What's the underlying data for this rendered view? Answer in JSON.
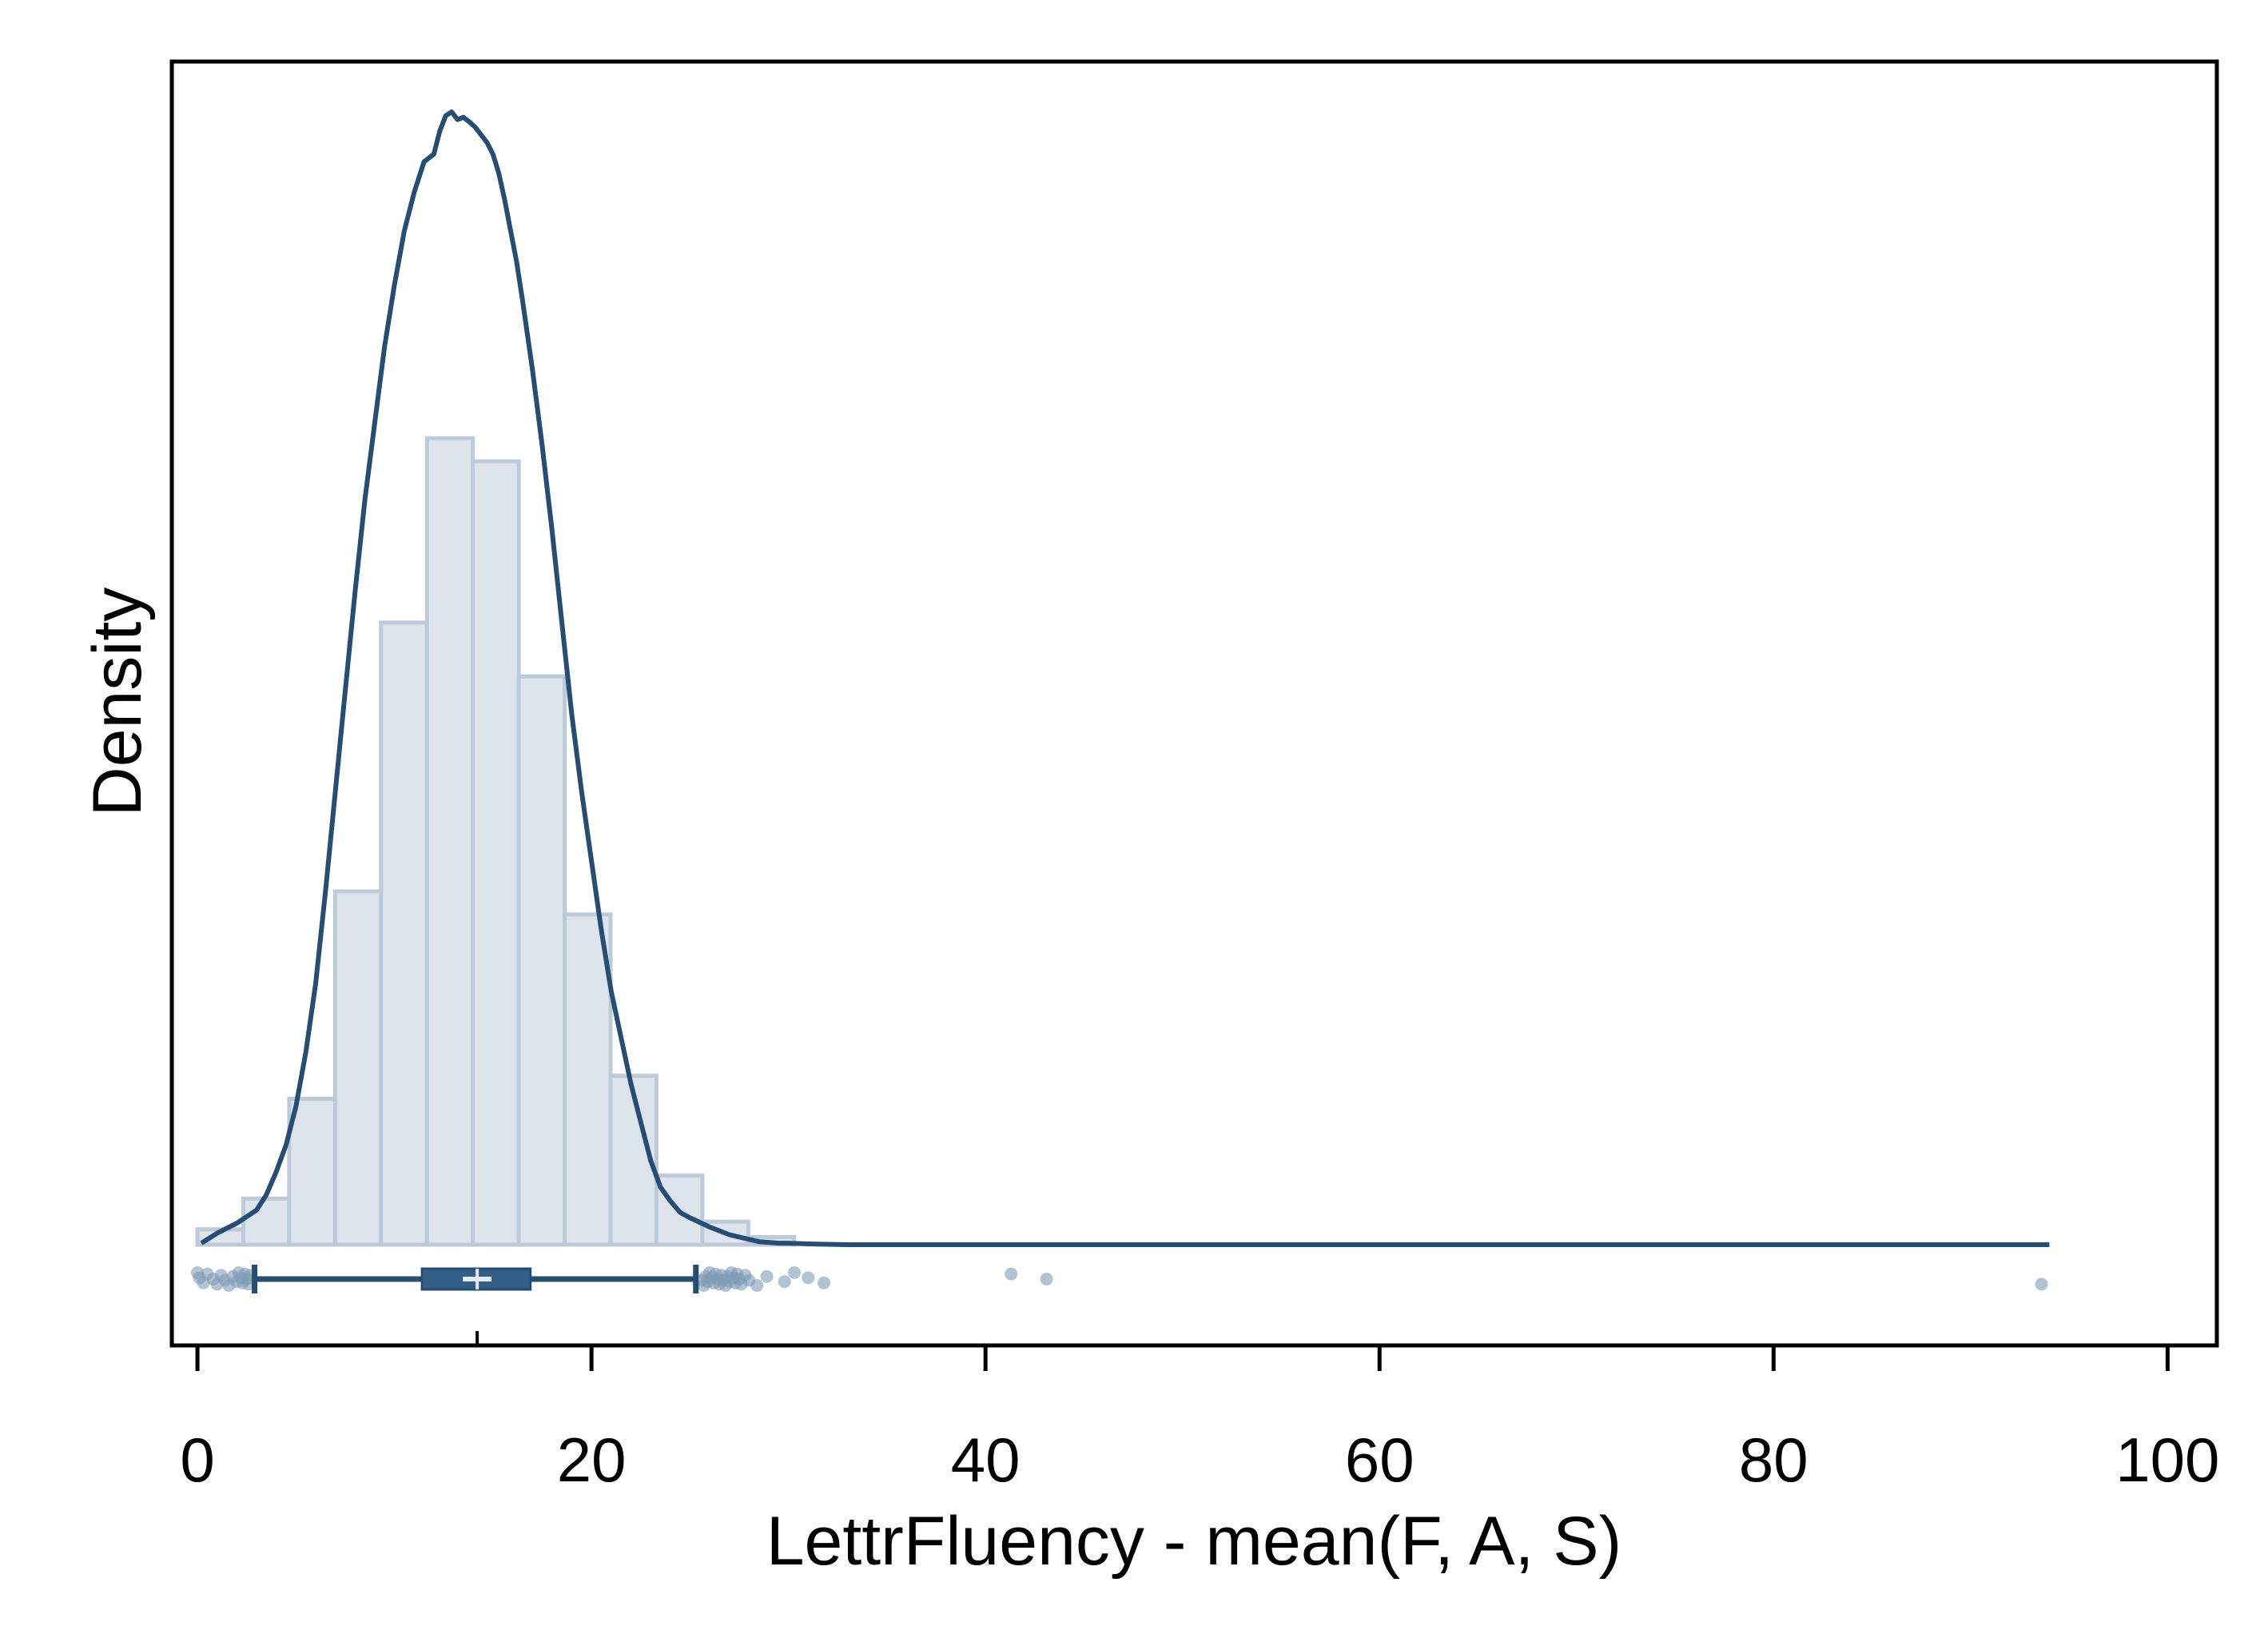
{
  "chart_data": {
    "type": "histogram",
    "xlabel": "LettrFluency - mean(F, A, S)",
    "ylabel": "Density",
    "xlim": [
      -1.3,
      102.5
    ],
    "x_ticks": [
      0,
      20,
      40,
      60,
      80,
      100
    ],
    "y_ticks_shown": false,
    "grid": false,
    "legend": "none",
    "histogram": {
      "bin_width": 2.33,
      "bins": [
        {
          "x0": 0.0,
          "density": 0.002
        },
        {
          "x0": 2.33,
          "density": 0.006
        },
        {
          "x0": 4.66,
          "density": 0.019
        },
        {
          "x0": 6.99,
          "density": 0.046
        },
        {
          "x0": 9.32,
          "density": 0.081
        },
        {
          "x0": 11.65,
          "density": 0.105
        },
        {
          "x0": 13.98,
          "density": 0.102
        },
        {
          "x0": 16.31,
          "density": 0.074
        },
        {
          "x0": 18.64,
          "density": 0.043
        },
        {
          "x0": 20.97,
          "density": 0.022
        },
        {
          "x0": 23.3,
          "density": 0.009
        },
        {
          "x0": 25.63,
          "density": 0.003
        },
        {
          "x0": 27.96,
          "density": 0.001
        }
      ]
    },
    "density_curve": {
      "x": [
        0.2,
        1.0,
        2.0,
        3.0,
        3.5,
        4.0,
        4.5,
        5.0,
        5.5,
        6.0,
        6.5,
        7.0,
        7.5,
        8.0,
        8.5,
        9.0,
        9.5,
        10.0,
        10.5,
        11.0,
        11.5,
        12.0,
        12.3,
        12.6,
        12.9,
        13.2,
        13.5,
        13.8,
        14.1,
        14.4,
        14.7,
        15.0,
        15.3,
        15.6,
        15.9,
        16.2,
        16.5,
        17.0,
        17.5,
        18.0,
        18.5,
        19.0,
        19.5,
        20.0,
        20.5,
        21.0,
        21.5,
        22.0,
        22.5,
        23.0,
        23.5,
        24.0,
        24.5,
        25.0,
        25.5,
        26.0,
        26.5,
        27.0,
        27.5,
        28.0,
        28.5,
        29.0,
        29.5,
        30.0,
        31.0,
        33.0,
        40.0,
        44.0,
        60.0,
        80.0,
        91.0,
        94.0
      ],
      "y": [
        0.0002,
        0.0015,
        0.0028,
        0.0045,
        0.0065,
        0.0095,
        0.013,
        0.018,
        0.025,
        0.034,
        0.046,
        0.059,
        0.072,
        0.085,
        0.097,
        0.107,
        0.117,
        0.125,
        0.132,
        0.137,
        0.141,
        0.142,
        0.145,
        0.147,
        0.1475,
        0.1465,
        0.1468,
        0.1462,
        0.1455,
        0.1445,
        0.1435,
        0.142,
        0.1395,
        0.136,
        0.132,
        0.128,
        0.123,
        0.114,
        0.104,
        0.093,
        0.081,
        0.069,
        0.059,
        0.05,
        0.041,
        0.033,
        0.027,
        0.021,
        0.016,
        0.011,
        0.0075,
        0.0057,
        0.0042,
        0.0035,
        0.0029,
        0.0023,
        0.0018,
        0.0013,
        0.001,
        0.0007,
        0.0004,
        0.0003,
        0.0002,
        0.0002,
        0.0001,
        0.0,
        0.0,
        0.0,
        0.0,
        0.0,
        0.0,
        0.0
      ]
    },
    "boxplot": {
      "whisker_low": 2.9,
      "q1": 11.4,
      "median": 14.2,
      "q3": 16.9,
      "whisker_high": 25.3,
      "outliers": [
        0.0,
        0.1,
        0.3,
        0.5,
        0.8,
        1.0,
        1.2,
        1.4,
        1.6,
        1.8,
        2.0,
        2.1,
        2.2,
        2.3,
        2.4,
        2.5,
        2.6,
        2.7,
        25.6,
        25.7,
        25.8,
        25.9,
        26.0,
        26.1,
        26.2,
        26.3,
        26.4,
        26.5,
        26.6,
        26.7,
        26.8,
        26.9,
        27.0,
        27.1,
        27.2,
        27.3,
        27.4,
        27.5,
        27.6,
        27.8,
        28.0,
        28.4,
        28.9,
        29.8,
        30.3,
        31.0,
        31.8,
        41.3,
        43.1,
        93.6
      ]
    },
    "colors": {
      "line": "#264d73",
      "bar_fill": "#dde4ec",
      "bar_edge": "#bccada",
      "box_fill": "#335e87",
      "outlier": "#7f9bb5"
    }
  }
}
